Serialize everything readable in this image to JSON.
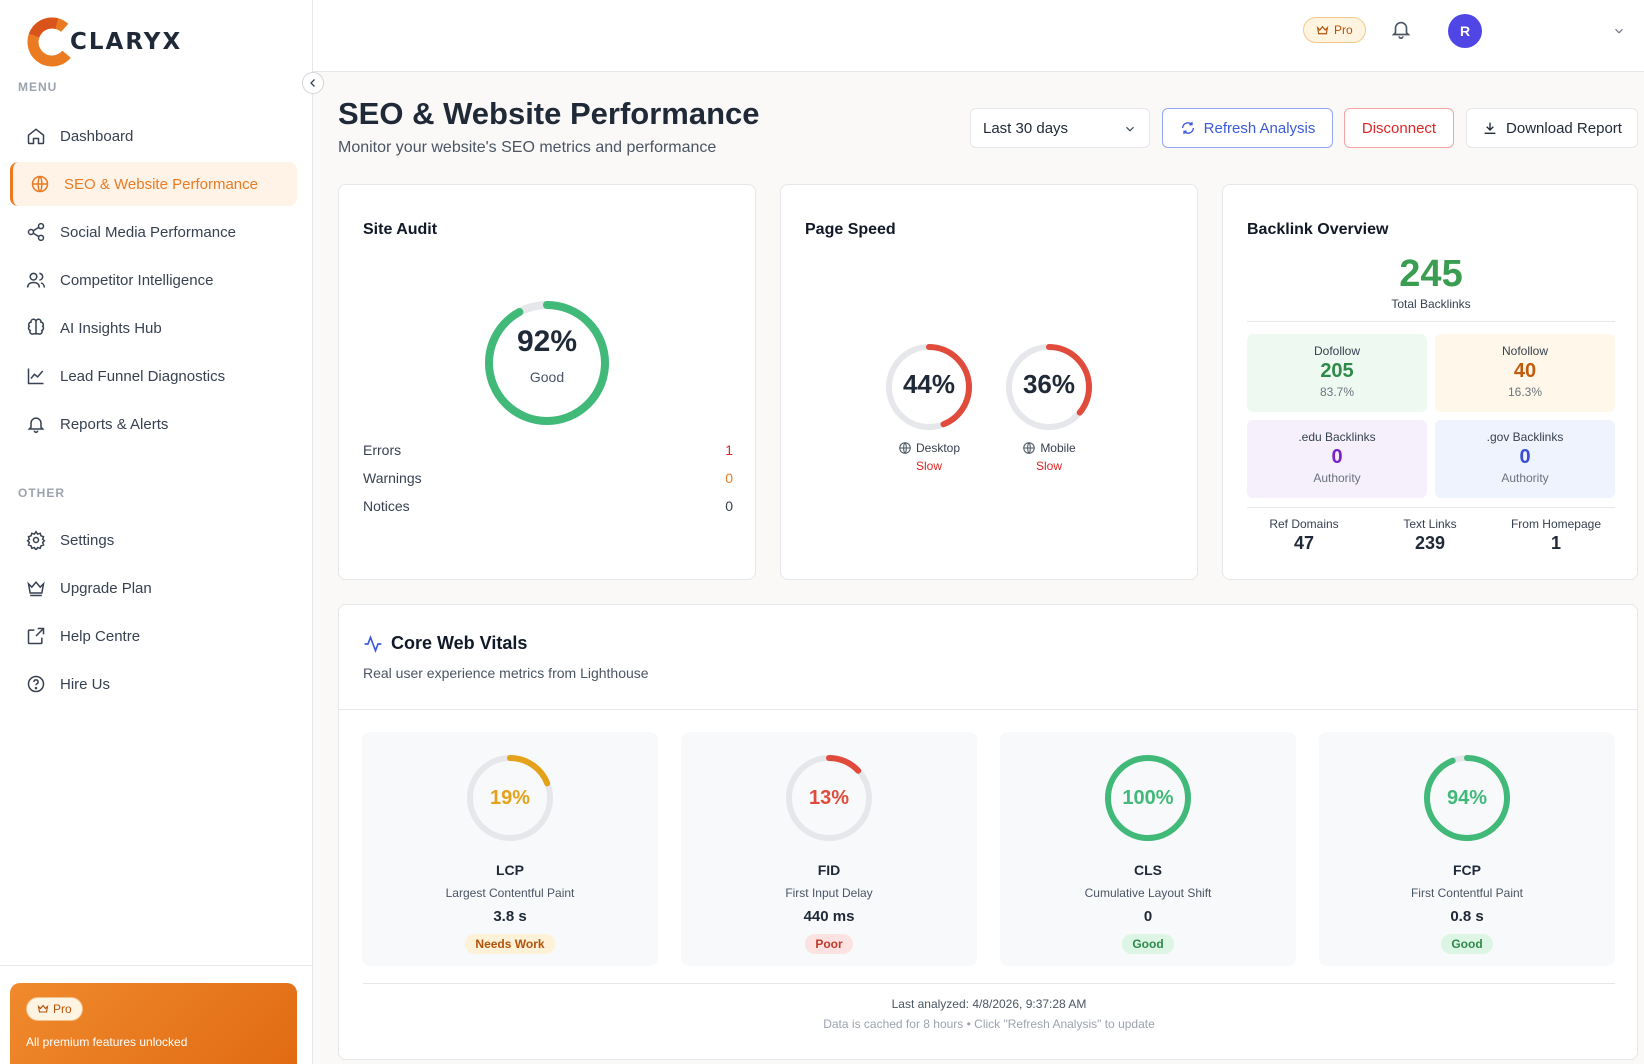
{
  "brand": {
    "name": "CLARYX"
  },
  "sidebar": {
    "menu_label": "MENU",
    "other_label": "OTHER",
    "items": [
      {
        "label": "Dashboard",
        "icon": "home-icon"
      },
      {
        "label": "SEO & Website Performance",
        "icon": "globe-icon",
        "active": true
      },
      {
        "label": "Social Media Performance",
        "icon": "share-icon"
      },
      {
        "label": "Competitor Intelligence",
        "icon": "users-icon"
      },
      {
        "label": "AI Insights Hub",
        "icon": "brain-icon"
      },
      {
        "label": "Lead Funnel Diagnostics",
        "icon": "line-chart-icon"
      },
      {
        "label": "Reports & Alerts",
        "icon": "bell-icon"
      }
    ],
    "other_items": [
      {
        "label": "Settings",
        "icon": "gear-icon"
      },
      {
        "label": "Upgrade Plan",
        "icon": "crown-icon"
      },
      {
        "label": "Help Centre",
        "icon": "external-link-icon"
      },
      {
        "label": "Hire Us",
        "icon": "help-circle-icon"
      }
    ],
    "pro_card": {
      "badge": "Pro",
      "text": "All premium features unlocked"
    }
  },
  "topbar": {
    "pro_badge": "Pro",
    "avatar_initial": "R"
  },
  "header": {
    "title": "SEO & Website Performance",
    "subtitle": "Monitor your website's SEO metrics and performance",
    "range_select": "Last 30 days",
    "refresh_label": "Refresh Analysis",
    "disconnect_label": "Disconnect",
    "download_label": "Download Report"
  },
  "site_audit": {
    "title": "Site Audit",
    "score": 92,
    "score_text": "92%",
    "score_label": "Good",
    "rows": [
      {
        "label": "Errors",
        "value": "1",
        "color": "#dc2626"
      },
      {
        "label": "Warnings",
        "value": "0",
        "color": "#ea7b21"
      },
      {
        "label": "Notices",
        "value": "0",
        "color": "#374151"
      }
    ]
  },
  "page_speed": {
    "title": "Page Speed",
    "desktop": {
      "score": 44,
      "score_text": "44%",
      "label": "Desktop",
      "status": "Slow"
    },
    "mobile": {
      "score": 36,
      "score_text": "36%",
      "label": "Mobile",
      "status": "Slow"
    }
  },
  "backlinks": {
    "title": "Backlink Overview",
    "total": "245",
    "total_label": "Total Backlinks",
    "dofollow": {
      "label": "Dofollow",
      "value": "205",
      "pct": "83.7%"
    },
    "nofollow": {
      "label": "Nofollow",
      "value": "40",
      "pct": "16.3%"
    },
    "edu": {
      "label": ".edu Backlinks",
      "value": "0",
      "sub": "Authority"
    },
    "gov": {
      "label": ".gov Backlinks",
      "value": "0",
      "sub": "Authority"
    },
    "ref_domains": {
      "label": "Ref Domains",
      "value": "47"
    },
    "text_links": {
      "label": "Text Links",
      "value": "239"
    },
    "from_homepage": {
      "label": "From Homepage",
      "value": "1"
    }
  },
  "core_web_vitals": {
    "title": "Core Web Vitals",
    "subtitle": "Real user experience metrics from Lighthouse",
    "metrics": [
      {
        "abbr": "LCP",
        "name": "Largest Contentful Paint",
        "score": 19,
        "score_text": "19%",
        "value": "3.8 s",
        "status": "Needs Work",
        "color": "#e3a21a"
      },
      {
        "abbr": "FID",
        "name": "First Input Delay",
        "score": 13,
        "score_text": "13%",
        "value": "440 ms",
        "status": "Poor",
        "color": "#e04b3c"
      },
      {
        "abbr": "CLS",
        "name": "Cumulative Layout Shift",
        "score": 100,
        "score_text": "100%",
        "value": "0",
        "status": "Good",
        "color": "#41b978"
      },
      {
        "abbr": "FCP",
        "name": "First Contentful Paint",
        "score": 94,
        "score_text": "94%",
        "value": "0.8 s",
        "status": "Good",
        "color": "#41b978"
      }
    ],
    "last_analyzed": "Last analyzed: 4/8/2026, 9:37:28 AM",
    "cache_note": "Data is cached for 8 hours • Click \"Refresh Analysis\" to update"
  }
}
